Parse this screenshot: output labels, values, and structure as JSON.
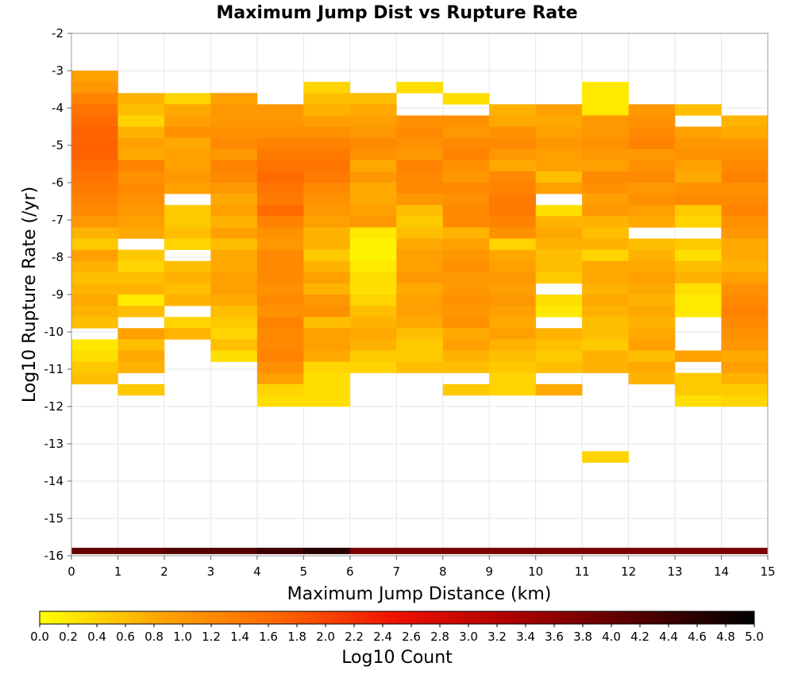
{
  "chart_data": {
    "type": "heatmap",
    "title": "Maximum Jump Dist vs Rupture Rate",
    "xlabel": "Maximum Jump Distance (km)",
    "ylabel": "Log10 Rupture Rate (/yr)",
    "xlim": [
      0,
      15
    ],
    "ylim": [
      -16,
      -2
    ],
    "xticks": [
      "0",
      "1",
      "2",
      "3",
      "4",
      "5",
      "6",
      "7",
      "8",
      "9",
      "10",
      "11",
      "12",
      "13",
      "14",
      "15"
    ],
    "yticks": [
      "-2",
      "-3",
      "-4",
      "-5",
      "-6",
      "-7",
      "-8",
      "-9",
      "-10",
      "-11",
      "-12",
      "-13",
      "-14",
      "-15",
      "-16"
    ],
    "grid": true,
    "bin_width_x": 1,
    "bin_height_y": 0.3,
    "colorbar": {
      "label": "Log10 Count",
      "range": [
        0.0,
        5.0
      ],
      "ticks": [
        "0.0",
        "0.2",
        "0.4",
        "0.6",
        "0.8",
        "1.0",
        "1.2",
        "1.4",
        "1.6",
        "1.8",
        "2.0",
        "2.2",
        "2.4",
        "2.6",
        "2.8",
        "3.0",
        "3.2",
        "3.4",
        "3.6",
        "3.8",
        "4.0",
        "4.2",
        "4.4",
        "4.6",
        "4.8",
        "5.0"
      ],
      "colors": [
        "#ffff00",
        "#ffa500",
        "#ff6600",
        "#ee1100",
        "#aa0000",
        "#550000",
        "#000000"
      ]
    },
    "columns": [
      {
        "x": 0,
        "top": -3.0,
        "values": [
          0.9,
          1.0,
          1.3,
          1.5,
          1.6,
          1.7,
          1.7,
          1.7,
          1.6,
          1.5,
          1.4,
          1.3,
          1.2,
          1.0,
          0.7,
          0.5,
          0.9,
          0.7,
          0.6,
          0.7,
          0.8,
          0.7,
          0.6,
          null,
          0.2,
          0.3,
          0.5,
          0.6
        ]
      },
      {
        "x": 1,
        "top": -3.6,
        "values": [
          0.7,
          0.6,
          0.4,
          0.7,
          0.9,
          0.8,
          1.3,
          1.1,
          1.2,
          1.1,
          1.0,
          0.9,
          0.8,
          null,
          0.5,
          0.4,
          0.6,
          0.7,
          0.2,
          0.6,
          null,
          0.9,
          0.6,
          0.8,
          0.7,
          null,
          0.5
        ]
      },
      {
        "x": 2,
        "top": -3.6,
        "values": [
          0.4,
          0.8,
          0.9,
          1.1,
          0.8,
          0.9,
          0.9,
          1.0,
          0.9,
          null,
          0.5,
          0.5,
          0.6,
          0.4,
          null,
          0.6,
          0.7,
          0.6,
          0.7,
          null,
          0.4,
          0.7
        ]
      },
      {
        "x": 3,
        "top": -3.6,
        "values": [
          0.9,
          1.0,
          1.0,
          1.1,
          1.2,
          1.0,
          1.3,
          1.2,
          1.0,
          0.8,
          0.9,
          0.7,
          0.9,
          0.6,
          0.8,
          0.8,
          0.9,
          0.9,
          0.8,
          0.6,
          0.5,
          0.4,
          0.6,
          0.3
        ]
      },
      {
        "x": 4,
        "top": -3.9,
        "values": [
          1.0,
          1.0,
          1.1,
          1.3,
          1.4,
          1.5,
          1.6,
          1.5,
          1.4,
          1.6,
          1.3,
          1.1,
          1.0,
          1.2,
          1.2,
          1.2,
          1.1,
          1.2,
          1.1,
          1.3,
          1.2,
          1.2,
          1.3,
          1.1,
          0.9,
          0.4,
          0.3
        ]
      },
      {
        "x": 5,
        "top": -3.3,
        "values": [
          0.4,
          0.6,
          0.7,
          0.9,
          1.1,
          1.3,
          1.4,
          1.5,
          1.4,
          1.2,
          1.1,
          1.0,
          0.9,
          0.7,
          0.7,
          0.5,
          0.7,
          0.9,
          0.7,
          1.0,
          1.1,
          0.6,
          0.9,
          0.9,
          0.8,
          0.4,
          0.3,
          0.3,
          0.3
        ]
      },
      {
        "x": 6,
        "top": -3.6,
        "values": [
          0.6,
          0.8,
          0.9,
          1.0,
          1.2,
          1.1,
          0.8,
          1.0,
          0.8,
          0.8,
          0.9,
          1.0,
          0.2,
          0.1,
          0.1,
          0.2,
          0.3,
          0.3,
          0.4,
          0.6,
          0.7,
          0.8,
          0.7,
          0.5,
          0.4
        ]
      },
      {
        "x": 7,
        "top": -3.3,
        "values": [
          0.3,
          null,
          null,
          1.1,
          1.2,
          1.1,
          1.0,
          1.3,
          1.2,
          1.2,
          1.0,
          0.6,
          0.5,
          0.6,
          0.8,
          0.9,
          0.9,
          1.0,
          0.8,
          0.9,
          0.9,
          0.8,
          0.6,
          0.5,
          0.5,
          0.6
        ]
      },
      {
        "x": 8,
        "top": -3.6,
        "values": [
          0.3,
          null,
          1.1,
          1.0,
          1.2,
          1.3,
          1.1,
          1.0,
          1.2,
          1.1,
          1.2,
          1.2,
          0.7,
          0.9,
          1.0,
          1.1,
          1.0,
          1.0,
          1.1,
          1.0,
          1.1,
          0.8,
          0.9,
          0.7,
          0.6,
          null,
          0.5
        ]
      },
      {
        "x": 9,
        "top": -3.9,
        "values": [
          0.7,
          0.8,
          1.1,
          1.2,
          1.0,
          0.8,
          1.2,
          1.3,
          1.4,
          1.4,
          1.3,
          1.1,
          0.4,
          0.8,
          0.9,
          1.0,
          0.9,
          1.0,
          0.9,
          0.8,
          0.9,
          0.7,
          0.6,
          0.5,
          0.4,
          0.4
        ]
      },
      {
        "x": 10,
        "top": -3.9,
        "values": [
          0.9,
          0.8,
          0.9,
          1.0,
          0.9,
          0.9,
          0.6,
          0.9,
          null,
          0.3,
          0.7,
          0.8,
          0.7,
          0.6,
          0.6,
          0.5,
          null,
          0.3,
          0.2,
          null,
          0.7,
          0.6,
          0.5,
          0.6,
          null,
          0.8
        ]
      },
      {
        "x": 11,
        "top": -3.3,
        "values": [
          0.2,
          0.2,
          0.2,
          1.0,
          1.0,
          1.1,
          1.0,
          0.9,
          1.2,
          1.1,
          0.9,
          1.0,
          0.7,
          0.6,
          0.7,
          0.4,
          0.8,
          0.8,
          0.7,
          0.8,
          0.7,
          0.6,
          0.6,
          0.5,
          0.7,
          0.7,
          null,
          null,
          null,
          null,
          null,
          null,
          null,
          0.4
        ]
      },
      {
        "x": 12,
        "top": -3.9,
        "values": [
          1.0,
          1.1,
          1.2,
          1.3,
          1.0,
          1.1,
          1.2,
          1.0,
          1.1,
          0.9,
          0.8,
          null,
          0.6,
          0.7,
          0.8,
          0.9,
          0.8,
          0.7,
          0.8,
          0.7,
          0.8,
          0.9,
          0.6,
          0.8,
          0.7
        ]
      },
      {
        "x": 13,
        "top": -3.9,
        "values": [
          0.6,
          null,
          0.9,
          1.0,
          1.1,
          0.9,
          0.8,
          1.1,
          1.2,
          0.5,
          0.4,
          null,
          0.5,
          0.3,
          0.6,
          0.7,
          0.3,
          0.2,
          0.2,
          null,
          null,
          null,
          0.9,
          null,
          0.5,
          0.5,
          0.3
        ]
      },
      {
        "x": 14,
        "top": -4.2,
        "values": [
          0.7,
          0.8,
          1.0,
          1.1,
          1.2,
          1.3,
          1.1,
          1.2,
          1.3,
          1.1,
          1.0,
          0.8,
          0.8,
          0.7,
          0.9,
          1.1,
          1.2,
          1.3,
          1.2,
          1.1,
          1.0,
          0.8,
          0.9,
          0.7,
          0.5,
          0.4
        ]
      }
    ],
    "bottom_row": {
      "y": -16,
      "values": [
        4.0,
        4.0,
        4.2,
        4.2,
        4.4,
        4.6,
        3.8,
        3.8,
        3.8,
        3.8,
        3.8,
        3.8,
        3.8,
        3.8,
        3.8
      ]
    }
  }
}
